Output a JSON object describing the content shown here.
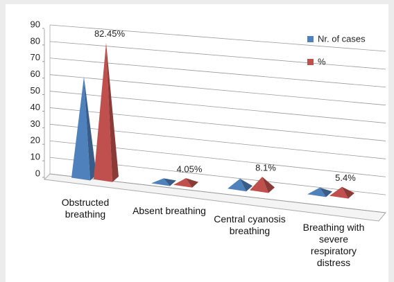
{
  "chart_data": {
    "type": "pyramid",
    "categories": [
      "Obstructed breathing",
      "Absent breathing",
      "Central cyanosis breathing",
      "Breathing with severe respiratory distress"
    ],
    "series": [
      {
        "name": "Nr. of cases",
        "color": "#4f81bd",
        "values": [
          61,
          3,
          6,
          4
        ]
      },
      {
        "name": "%",
        "color": "#c0504d",
        "values": [
          82.45,
          4.05,
          8.1,
          5.4
        ],
        "value_labels": [
          "82.45%",
          "4.05%",
          "8.1%",
          "5.4%"
        ]
      }
    ],
    "ylim": [
      0,
      90
    ],
    "yticks": [
      0,
      10,
      20,
      30,
      40,
      50,
      60,
      70,
      80,
      90
    ],
    "grid": true,
    "legend": "right"
  }
}
